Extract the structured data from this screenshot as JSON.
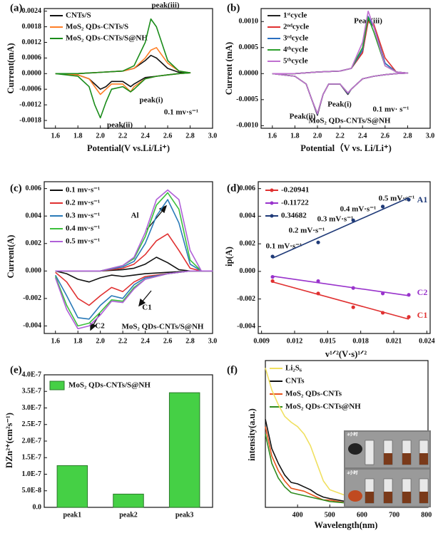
{
  "chart_data": [
    {
      "type": "line",
      "label": "(a)",
      "xlabel": "Potential(V vs.Li/Li⁺)",
      "ylabel": "Current(mA)",
      "xlim": [
        1.5,
        3.0
      ],
      "xticks": [
        1.6,
        1.8,
        {
          "value": 2.0,
          "label": "2.0"
        },
        2.2,
        2.4,
        2.6,
        2.8,
        {
          "value": 3.0,
          "label": "3.0"
        }
      ],
      "ylim": [
        -0.0021,
        0.0025
      ],
      "yticks": [
        -0.0018,
        -0.0012,
        -0.0006,
        {
          "value": 0,
          "label": "0.0000"
        },
        0.0006,
        0.0012,
        0.0018,
        0.0024
      ],
      "x": [
        1.6,
        1.8,
        2.0,
        2.2,
        2.3,
        2.4,
        2.45,
        2.5,
        2.6,
        2.7,
        2.8,
        2.7,
        2.6,
        2.5,
        2.4,
        2.3,
        2.27,
        2.2,
        2.1,
        2.05,
        2.0,
        1.95,
        1.9,
        1.8,
        1.6
      ],
      "series": [
        {
          "name": "CNTs/S",
          "color": "#111111",
          "values": [
            0,
            0,
            5e-05,
            0.0001,
            0.0002,
            0.0005,
            0.0007,
            0.0006,
            0.0002,
            5e-05,
            3e-05,
            0,
            -5e-05,
            -0.0001,
            -0.00015,
            -0.0004,
            -0.0005,
            -0.0003,
            -0.0003,
            -0.0005,
            -0.0006,
            -0.0004,
            -0.0002,
            -5e-05,
            0
          ]
        },
        {
          "name": "MoS₂ QDs-CNTs/S",
          "color": "#ff7f27",
          "values": [
            0,
            0,
            5e-05,
            0.0001,
            0.0002,
            0.0006,
            0.0009,
            0.001,
            0.0004,
            0.0001,
            3e-05,
            0,
            -5e-05,
            -0.0001,
            -0.0002,
            -0.0005,
            -0.0007,
            -0.0004,
            -0.0004,
            -0.0006,
            -0.0008,
            -0.0005,
            -0.0002,
            -5e-05,
            0
          ]
        },
        {
          "name": "MoS₂ QDs-CNTs/S@NH",
          "color": "#1a8c1a",
          "values": [
            0,
            0,
            5e-05,
            0.0001,
            0.0003,
            0.0012,
            0.0021,
            0.0018,
            0.0005,
            0.0001,
            3e-05,
            0,
            -5e-05,
            -0.0001,
            -0.0002,
            -0.0006,
            -0.0007,
            -0.0005,
            -0.0006,
            -0.0011,
            -0.0017,
            -0.0012,
            -0.0005,
            -0.0001,
            0
          ]
        }
      ],
      "annotations": [
        "peak(iii)",
        "peak(i)",
        "peak(ii)",
        "0.1 mv·s⁻¹"
      ]
    },
    {
      "type": "line",
      "label": "(b)",
      "xlabel": "Potential（V vs. Li/Li⁺)",
      "ylabel": "Current (mA)",
      "xlim": [
        1.5,
        3.0
      ],
      "xticks": [
        1.6,
        1.8,
        {
          "value": 2.0,
          "label": "2.0"
        },
        2.2,
        2.4,
        2.6,
        2.8,
        {
          "value": 3.0,
          "label": "3.0"
        }
      ],
      "ylim": [
        -0.00105,
        0.00125
      ],
      "yticks": [
        {
          "value": -0.001,
          "label": "-0.0010"
        },
        -0.0005,
        {
          "value": 0,
          "label": "0.0000"
        },
        0.0005,
        {
          "value": 0.001,
          "label": "0.0010"
        }
      ],
      "x": [
        1.6,
        1.8,
        2.0,
        2.2,
        2.3,
        2.4,
        2.45,
        2.5,
        2.6,
        2.7,
        2.8,
        2.7,
        2.6,
        2.5,
        2.4,
        2.3,
        2.27,
        2.2,
        2.1,
        2.05,
        2.0,
        1.95,
        1.9,
        1.8,
        1.6
      ],
      "series": [
        {
          "name": "1ˢᵗcycle",
          "color": "#222222",
          "values": [
            0,
            0,
            3e-05,
            5e-05,
            0.0001,
            0.0004,
            0.00105,
            0.0009,
            0.0002,
            3e-05,
            1e-05,
            0,
            -2e-05,
            -5e-05,
            -0.0001,
            -0.0003,
            -0.0004,
            -0.0002,
            -0.0002,
            -0.0004,
            -0.0008,
            -0.0005,
            -0.0002,
            -5e-05,
            0
          ]
        },
        {
          "name": "2ⁿᵈcycle",
          "color": "#e03030",
          "values": [
            0,
            0,
            3e-05,
            5e-05,
            0.0001,
            0.0004,
            0.001,
            0.00095,
            0.0003,
            3e-05,
            1e-05,
            0,
            -2e-05,
            -5e-05,
            -0.0001,
            -0.0003,
            -0.00038,
            -0.0002,
            -0.0002,
            -0.0004,
            -0.00078,
            -0.0005,
            -0.0002,
            -5e-05,
            0
          ]
        },
        {
          "name": "3ʳᵈcycle",
          "color": "#2a6fc0",
          "values": [
            0,
            0,
            3e-05,
            5e-05,
            0.0001,
            0.00045,
            0.0011,
            0.0009,
            0.0002,
            3e-05,
            1e-05,
            0,
            -2e-05,
            -5e-05,
            -0.0001,
            -0.0003,
            -0.00038,
            -0.0002,
            -0.0002,
            -0.0004,
            -0.00078,
            -0.0005,
            -0.0002,
            -5e-05,
            0
          ]
        },
        {
          "name": "4ᵗʰcycle",
          "color": "#2ca02c",
          "values": [
            0,
            0,
            3e-05,
            5e-05,
            0.0001,
            0.0005,
            0.00108,
            0.0008,
            0.00015,
            3e-05,
            1e-05,
            0,
            -2e-05,
            -5e-05,
            -0.0001,
            -0.0003,
            -0.00037,
            -0.0002,
            -0.0002,
            -0.0004,
            -0.00077,
            -0.0005,
            -0.0002,
            -5e-05,
            0
          ]
        },
        {
          "name": "5ᵗʰcycle",
          "color": "#c070d0",
          "values": [
            0,
            0,
            3e-05,
            5e-05,
            0.0001,
            0.0006,
            0.0012,
            0.0009,
            0.00015,
            3e-05,
            1e-05,
            0,
            -2e-05,
            -5e-05,
            -0.0001,
            -0.0003,
            -0.00037,
            -0.0002,
            -0.0002,
            -0.0004,
            -0.00077,
            -0.0005,
            -0.0002,
            -5e-05,
            0
          ]
        }
      ],
      "annotations": [
        "Peak(iii)",
        "Peak(i)",
        "Peak(ii)",
        "0.1 mv· s⁻¹",
        "MoS₂ QDs-CNTs/S@NH"
      ]
    },
    {
      "type": "line",
      "label": "(c)",
      "ylabel": "Current(A)",
      "xlim": [
        1.5,
        3.0
      ],
      "xticks": [
        1.6,
        1.8,
        {
          "value": 2.0,
          "label": "2.0"
        },
        2.2,
        2.4,
        2.6,
        2.8,
        {
          "value": 3.0,
          "label": "3.0"
        }
      ],
      "ylim": [
        -0.00455,
        0.0065
      ],
      "yticks": [
        -0.004,
        -0.002,
        {
          "value": 0,
          "label": "0.000"
        },
        0.002,
        0.004,
        0.006
      ],
      "x": [
        1.6,
        1.8,
        2.0,
        2.2,
        2.3,
        2.4,
        2.5,
        2.6,
        2.7,
        2.8,
        2.9,
        3.0,
        2.9,
        2.8,
        2.6,
        2.4,
        2.3,
        2.2,
        2.1,
        2.0,
        1.9,
        1.8,
        1.7,
        1.6
      ],
      "series": [
        {
          "name": "0.1 mv·s⁻¹",
          "color": "#111111",
          "values": [
            0,
            0,
            0,
            0.0001,
            0.0002,
            0.0005,
            0.001,
            0.0006,
            0.0001,
            0,
            0,
            0,
            0,
            0,
            -0.0001,
            -0.0002,
            -0.0003,
            -0.0004,
            -0.0003,
            -0.0005,
            -0.0008,
            -0.0006,
            -0.0002,
            0
          ]
        },
        {
          "name": "0.2 mv·s⁻¹",
          "color": "#e03030",
          "values": [
            0,
            0,
            0,
            0.0002,
            0.0005,
            0.0012,
            0.0022,
            0.0027,
            0.0015,
            0.0002,
            0,
            0,
            0,
            0,
            -0.0002,
            -0.0004,
            -0.0008,
            -0.0015,
            -0.0012,
            -0.0018,
            -0.0025,
            -0.002,
            -0.0008,
            -0.0001
          ]
        },
        {
          "name": "0.3 mv·s⁻¹",
          "color": "#2a7ab8",
          "values": [
            0,
            0,
            0,
            0.0003,
            0.0007,
            0.002,
            0.004,
            0.0052,
            0.0035,
            0.0005,
            0,
            0,
            0,
            0,
            -0.0002,
            -0.0005,
            -0.001,
            -0.002,
            -0.0018,
            -0.0025,
            -0.0035,
            -0.0034,
            -0.0018,
            -0.0003
          ]
        },
        {
          "name": "0.4 mv·s⁻¹",
          "color": "#3cc03c",
          "values": [
            0,
            0,
            0,
            0.0004,
            0.0009,
            0.0025,
            0.0048,
            0.0057,
            0.0045,
            0.0008,
            0,
            0,
            0,
            0,
            -0.0002,
            -0.0006,
            -0.0012,
            -0.0022,
            -0.0021,
            -0.003,
            -0.0038,
            -0.004,
            -0.0025,
            -0.0004
          ]
        },
        {
          "name": "0.5 mv·s⁻¹",
          "color": "#b060d8",
          "values": [
            0,
            0,
            0,
            0.0004,
            0.001,
            0.0028,
            0.0052,
            0.0059,
            0.0052,
            0.0015,
            0,
            0,
            0,
            0,
            -0.0002,
            -0.0006,
            -0.0013,
            -0.0023,
            -0.0022,
            -0.0032,
            -0.004,
            -0.0042,
            -0.0028,
            -0.0005
          ]
        }
      ],
      "annotations": [
        "Al",
        "C1",
        "C2",
        "MoS₂ QDs-CNTs/S@NH"
      ]
    },
    {
      "type": "scatter",
      "label": "(d)",
      "xlabel": "v¹ᐟ²(V·s)¹ᐟ²",
      "ylabel": "ip(A)",
      "xlim": [
        0.0087,
        0.0243
      ],
      "xticks": [
        0.009,
        0.012,
        0.015,
        0.018,
        0.021,
        0.024
      ],
      "ylim": [
        -0.0045,
        0.0065
      ],
      "yticks": [
        -0.004,
        -0.002,
        {
          "value": 0,
          "label": "0.000"
        },
        0.002,
        0.004,
        0.006
      ],
      "x": [
        0.01,
        0.01414,
        0.01732,
        0.02,
        0.02236
      ],
      "series": [
        {
          "name": "-0.20941",
          "label": "C1",
          "color": "#e03030",
          "values": [
            -0.0007,
            -0.0016,
            -0.0026,
            -0.003,
            -0.0033
          ]
        },
        {
          "name": "-0.11722",
          "label": "C2",
          "color": "#9933cc",
          "values": [
            -0.0004,
            -0.0007,
            -0.0012,
            -0.0016,
            -0.0017
          ]
        },
        {
          "name": "0.34682",
          "label": "A1",
          "color": "#1f3a78",
          "values": [
            0.00108,
            0.0021,
            0.0037,
            0.0047,
            0.0052
          ]
        }
      ],
      "annotations": [
        "0.1 mV·s⁻¹",
        "0.2 mV·s⁻¹",
        "0.3 mV·s⁻¹",
        "0.4 mV·s⁻¹",
        "0.5 mV·s⁻¹"
      ]
    },
    {
      "type": "bar",
      "label": "(e)",
      "ylabel": "DZn²⁺(cm²s⁻¹)",
      "categories": [
        "peak1",
        "peak2",
        "peak3"
      ],
      "ylim": [
        0,
        4e-07
      ],
      "yticks": [
        {
          "value": 0,
          "label": "0.0"
        },
        {
          "value": 5e-08,
          "label": "5.0E-8"
        },
        {
          "value": 1e-07,
          "label": "1.0E-7"
        },
        {
          "value": 1.5e-07,
          "label": "1.5E-7"
        },
        {
          "value": 2e-07,
          "label": "2.0E-7"
        },
        {
          "value": 2.5e-07,
          "label": "2.5E-7"
        },
        {
          "value": 3e-07,
          "label": "3.0E-7"
        },
        {
          "value": 3.5e-07,
          "label": "3.5E-7"
        },
        {
          "value": 4e-07,
          "label": "4.0E-7"
        }
      ],
      "series": [
        {
          "name": "MoS₂ QDs-CNTs/S@NH",
          "color": "#45d045",
          "values": [
            1.26e-07,
            4e-08,
            3.46e-07
          ]
        }
      ]
    },
    {
      "type": "line",
      "label": "(f)",
      "xlabel": "Wavelength(nm)",
      "ylabel": "intensity(a.u.)",
      "xlim": [
        300,
        805
      ],
      "xticks": [
        400,
        500,
        600,
        700,
        800
      ],
      "ylim": [
        0,
        1
      ],
      "x": [
        300,
        320,
        340,
        360,
        380,
        400,
        420,
        440,
        460,
        480,
        500,
        550,
        600,
        700,
        800
      ],
      "series": [
        {
          "name": "Li₂S₆",
          "color": "#f0e060",
          "values": [
            0.95,
            0.8,
            0.7,
            0.62,
            0.58,
            0.55,
            0.5,
            0.42,
            0.3,
            0.18,
            0.12,
            0.08,
            0.06,
            0.05,
            0.04
          ]
        },
        {
          "name": "CNTs",
          "color": "#111111",
          "values": [
            0.6,
            0.4,
            0.3,
            0.22,
            0.17,
            0.16,
            0.14,
            0.12,
            0.09,
            0.07,
            0.06,
            0.04,
            0.03,
            0.02,
            0.02
          ]
        },
        {
          "name": "MoS₂ QDs-CNTs",
          "color": "#e8541c",
          "values": [
            0.55,
            0.35,
            0.25,
            0.18,
            0.13,
            0.12,
            0.11,
            0.09,
            0.07,
            0.05,
            0.05,
            0.03,
            0.03,
            0.02,
            0.02
          ]
        },
        {
          "name": "MoS₂ QDs-CNTs@NH",
          "color": "#2e8b1e",
          "values": [
            0.5,
            0.3,
            0.2,
            0.14,
            0.1,
            0.09,
            0.08,
            0.07,
            0.06,
            0.05,
            0.04,
            0.03,
            0.02,
            0.02,
            0.01
          ]
        }
      ],
      "annotations": [
        "4小时",
        "4小时"
      ]
    }
  ]
}
